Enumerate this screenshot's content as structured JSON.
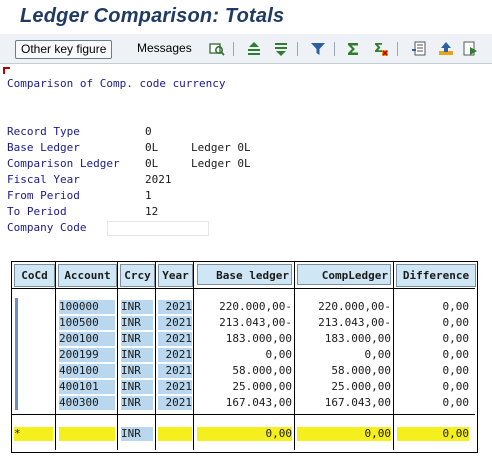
{
  "window": {
    "title": "Ledger Comparison: Totals"
  },
  "toolbar": {
    "other_key_figure_label": "Other key figure",
    "messages_label": "Messages",
    "icons": [
      "details-icon",
      "sort-ascending-icon",
      "sort-descending-icon",
      "filter-icon",
      "sum-icon",
      "subtotal-icon",
      "export-icon",
      "arrow-up-icon",
      "print-preview-icon"
    ]
  },
  "report": {
    "heading": "Comparison of Comp. code currency",
    "params": [
      {
        "label": "Record Type",
        "value": "0",
        "extra": ""
      },
      {
        "label": "Base Ledger",
        "value": "0L",
        "extra": "Ledger 0L"
      },
      {
        "label": "Comparison Ledger",
        "value": "0L",
        "extra": "Ledger 0L"
      },
      {
        "label": "Fiscal Year",
        "value": "2021",
        "extra": ""
      },
      {
        "label": "From Period",
        "value": "1",
        "extra": ""
      },
      {
        "label": "To Period",
        "value": "12",
        "extra": ""
      },
      {
        "label": "Company Code",
        "value": "",
        "extra": ""
      }
    ]
  },
  "table": {
    "headers": [
      "CoCd",
      "Account",
      "Crcy",
      "Year",
      "Base ledger",
      "CompLedger",
      "Difference"
    ],
    "rows": [
      {
        "cocd": "",
        "account": "100000",
        "crcy": "INR",
        "year": "2021",
        "base": "220.000,00-",
        "comp": "220.000,00-",
        "diff": "0,00"
      },
      {
        "cocd": "",
        "account": "100500",
        "crcy": "INR",
        "year": "2021",
        "base": "213.043,00-",
        "comp": "213.043,00-",
        "diff": "0,00"
      },
      {
        "cocd": "",
        "account": "200100",
        "crcy": "INR",
        "year": "2021",
        "base": "183.000,00",
        "comp": "183.000,00",
        "diff": "0,00"
      },
      {
        "cocd": "",
        "account": "200199",
        "crcy": "INR",
        "year": "2021",
        "base": "0,00",
        "comp": "0,00",
        "diff": "0,00"
      },
      {
        "cocd": "",
        "account": "400100",
        "crcy": "INR",
        "year": "2021",
        "base": "58.000,00",
        "comp": "58.000,00",
        "diff": "0,00"
      },
      {
        "cocd": "",
        "account": "400101",
        "crcy": "INR",
        "year": "2021",
        "base": "25.000,00",
        "comp": "25.000,00",
        "diff": "0,00"
      },
      {
        "cocd": "",
        "account": "400300",
        "crcy": "INR",
        "year": "2021",
        "base": "167.043,00",
        "comp": "167.043,00",
        "diff": "0,00"
      }
    ],
    "total": {
      "cocd": "*",
      "account": "",
      "crcy": "INR",
      "year": "",
      "base": "0,00",
      "comp": "0,00",
      "diff": "0,00"
    }
  },
  "colors": {
    "title": "#1f3b63",
    "header_bg": "#cfe6f5",
    "key_bg": "#b9d7ef",
    "total_bg": "#f5ef1e",
    "text_blue": "#1a1a8c"
  }
}
